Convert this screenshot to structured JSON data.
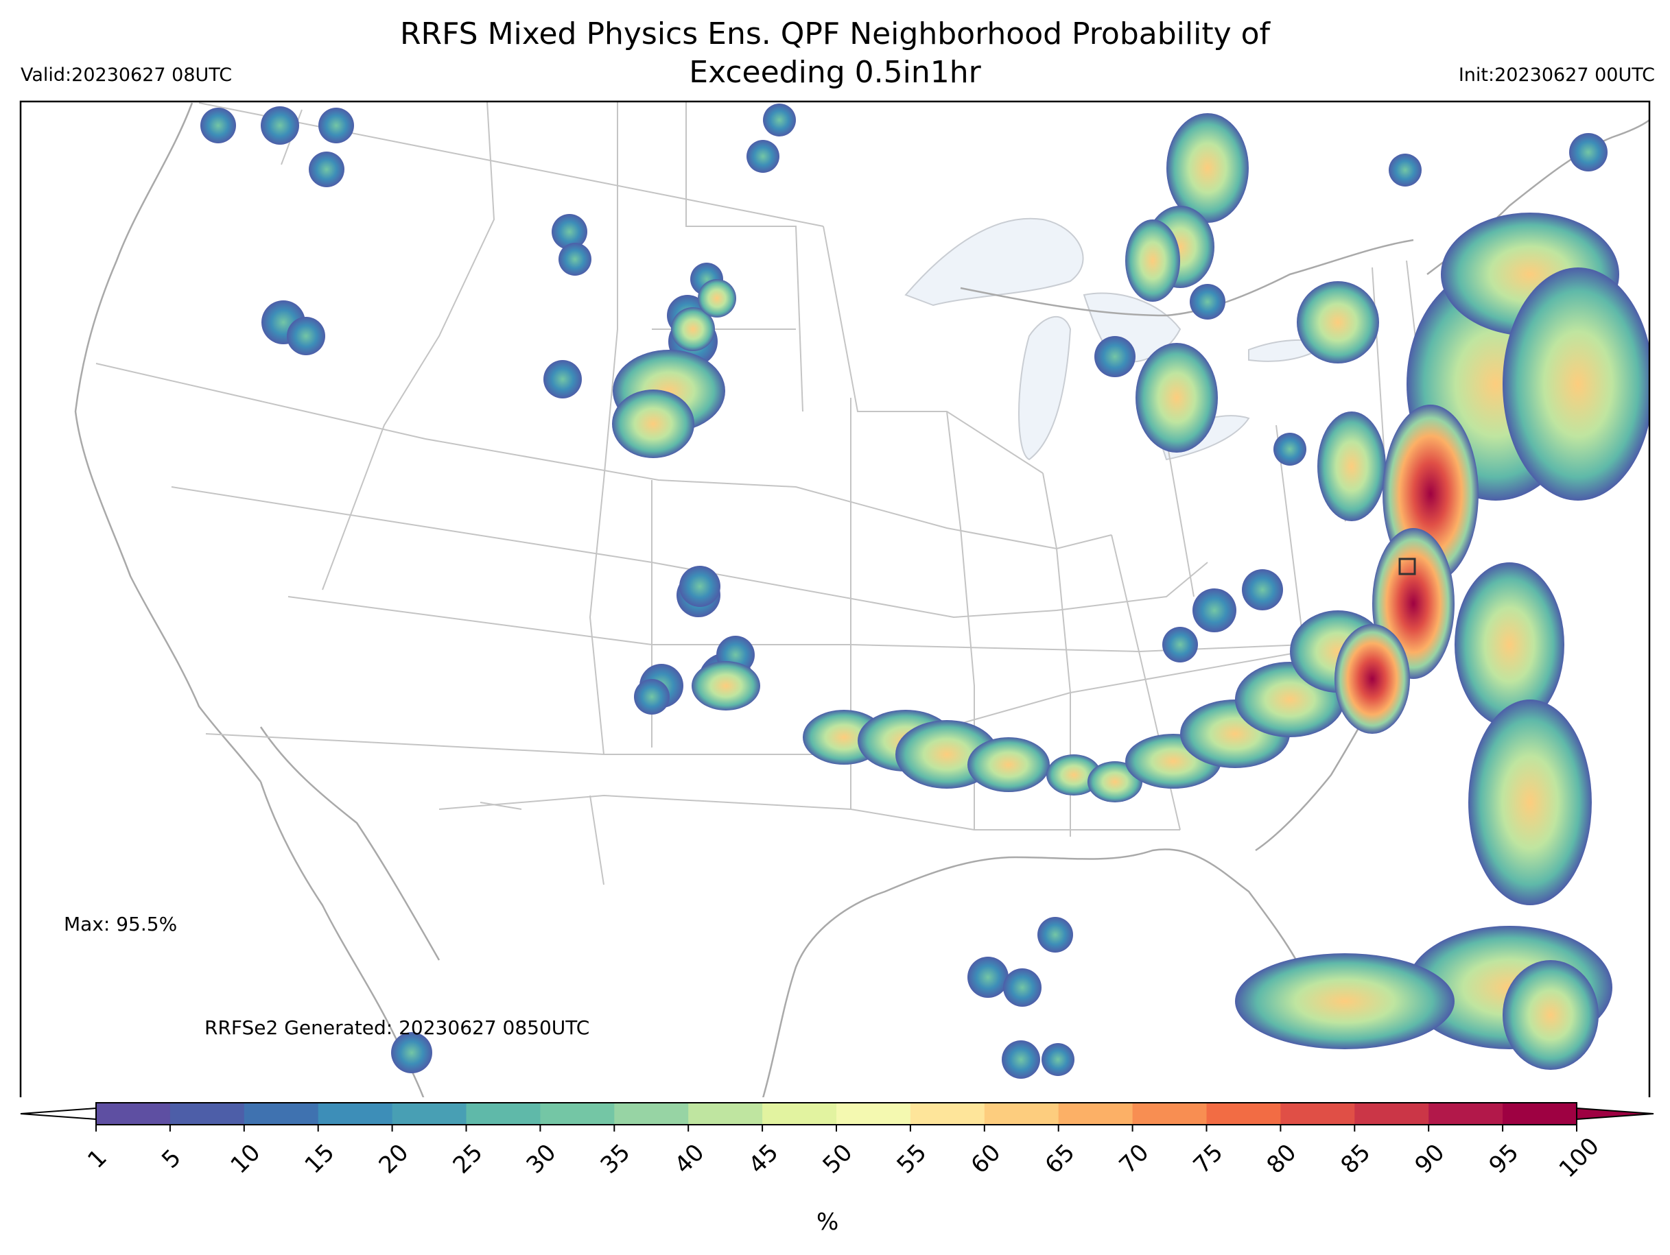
{
  "header": {
    "title": "RRFS Mixed Physics Ens. QPF Neighborhood Probability of\nExceeding 0.5in1hr",
    "valid": "Valid:20230627 08UTC",
    "init": "Init:20230627 00UTC"
  },
  "annotations": {
    "max": "Max: 95.5%",
    "generated": "RRFSe2 Generated: 20230627 0850UTC"
  },
  "colorbar": {
    "unit": "%",
    "ticks": [
      "1",
      "5",
      "10",
      "15",
      "20",
      "25",
      "30",
      "35",
      "40",
      "45",
      "50",
      "55",
      "60",
      "65",
      "70",
      "75",
      "80",
      "85",
      "90",
      "95",
      "100"
    ],
    "colors": [
      "#5e4fa2",
      "#4d5ea8",
      "#3f72b0",
      "#3d8eb8",
      "#489fb4",
      "#5fb9a9",
      "#74c6a5",
      "#97d4a4",
      "#bfe5a0",
      "#e2f3a0",
      "#f4f9b0",
      "#fee59a",
      "#fdcd7e",
      "#fcb066",
      "#f88e52",
      "#f26c44",
      "#e04f46",
      "#cb3647",
      "#b2184a",
      "#9e0142"
    ]
  },
  "map": {
    "region": "CONUS",
    "projection": "Lambert conformal",
    "field": "neighborhood probability",
    "lake_color": "#eef3f9",
    "border_color": "#b8b8b8"
  }
}
